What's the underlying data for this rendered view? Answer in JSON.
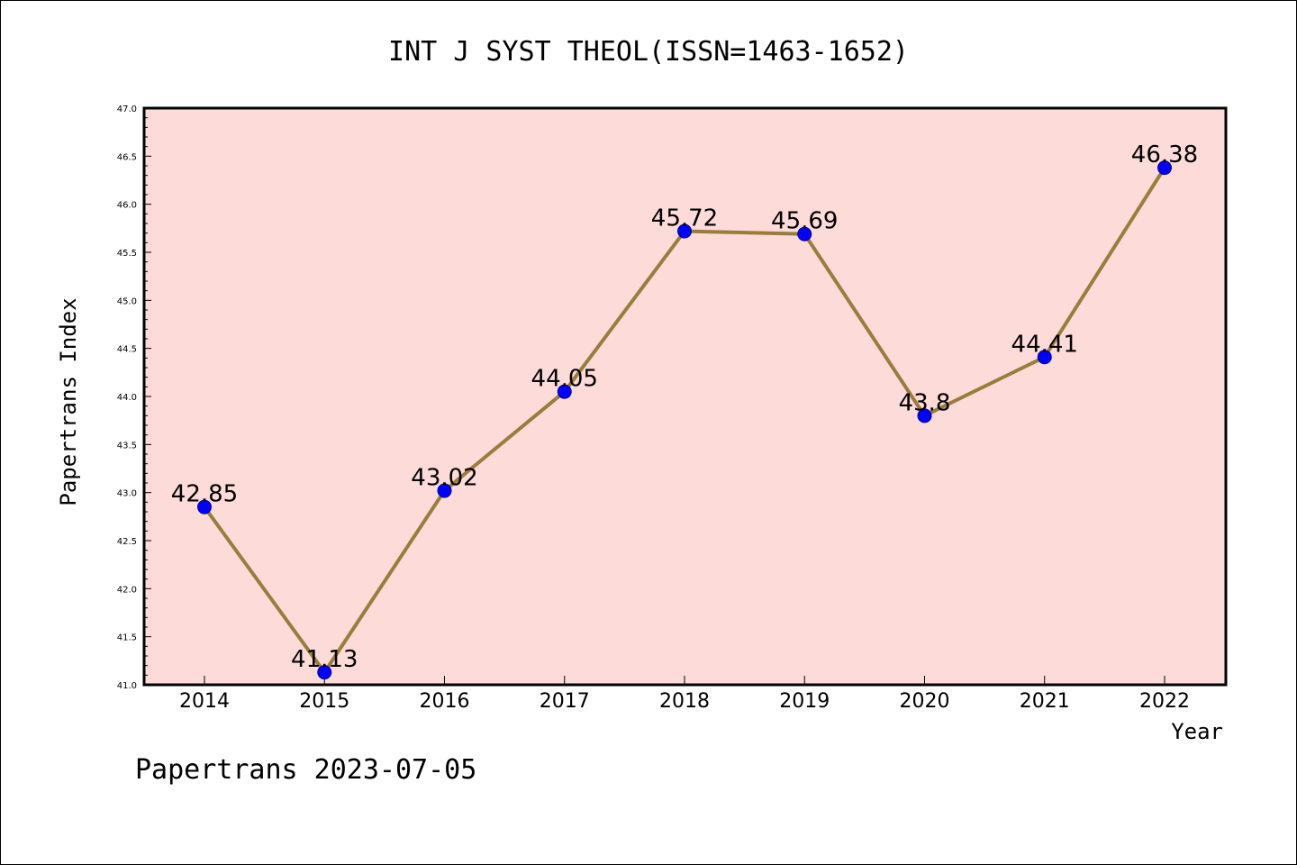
{
  "chart_data": {
    "type": "line",
    "title": "INT J SYST THEOL(ISSN=1463-1652)",
    "xlabel": "Year",
    "ylabel": "Papertrans Index",
    "categories": [
      "2014",
      "2015",
      "2016",
      "2017",
      "2018",
      "2019",
      "2020",
      "2021",
      "2022"
    ],
    "series": [
      {
        "values": [
          42.85,
          41.13,
          43.02,
          44.05,
          45.72,
          45.69,
          43.8,
          44.41,
          46.38
        ],
        "labels": [
          "42.85",
          "41.13",
          "43.02",
          "44.05",
          "45.72",
          "45.69",
          "43.8",
          "44.41",
          "46.38"
        ]
      }
    ],
    "ylim": [
      41.0,
      47.0
    ],
    "yticks": [
      "41.0",
      "41.5",
      "42.0",
      "42.5",
      "43.0",
      "43.5",
      "44.0",
      "44.5",
      "45.0",
      "45.5",
      "46.0",
      "46.5",
      "47.0"
    ],
    "grid": false,
    "colors": {
      "plot_background": "#fddbd8",
      "line": "#9a7d3c",
      "marker": "#0000ff"
    }
  },
  "footer": "Papertrans 2023-07-05"
}
